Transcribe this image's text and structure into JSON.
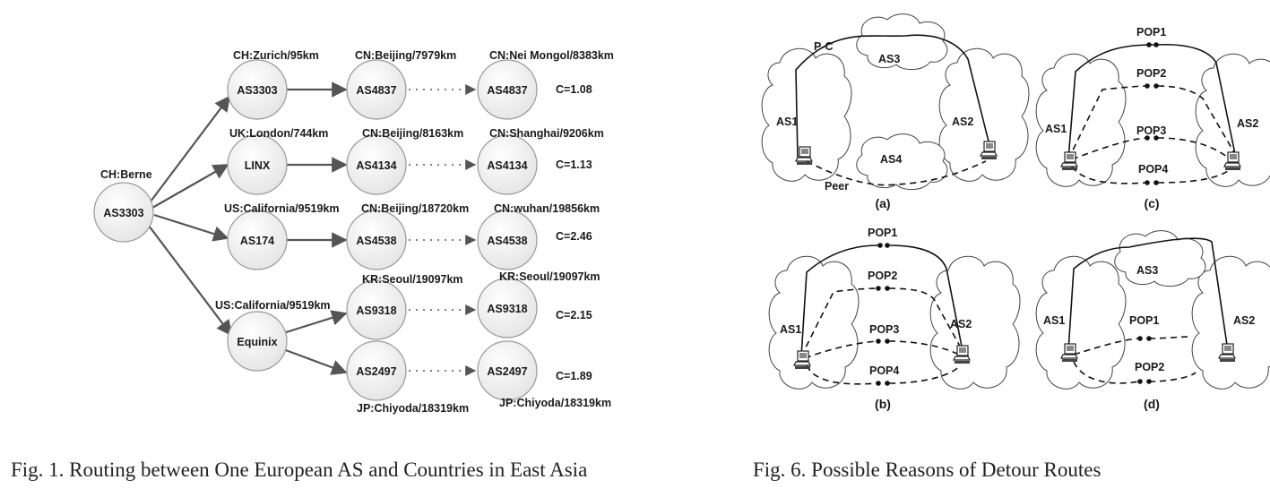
{
  "fig1": {
    "caption": "Fig. 1.  Routing between One European AS and Countries in East Asia",
    "source": {
      "name": "AS3303",
      "location": "CH:Berne"
    },
    "routes": [
      {
        "hop1": "AS3303",
        "hop1_loc": "CH:Zurich/95km",
        "hop2": "AS4837",
        "hop2_loc": "CN:Beijing/7979km",
        "hop3": "AS4837",
        "hop3_loc": "CN:Nei Mongol/8383km",
        "c": "C=1.08"
      },
      {
        "hop1": "LINX",
        "hop1_loc": "UK:London/744km",
        "hop2": "AS4134",
        "hop2_loc": "CN:Beijing/8163km",
        "hop3": "AS4134",
        "hop3_loc": "CN:Shanghai/9206km",
        "c": "C=1.13"
      },
      {
        "hop1": "AS174",
        "hop1_loc": "US:California/9519km",
        "hop2": "AS4538",
        "hop2_loc": "CN:Beijing/18720km",
        "hop3": "AS4538",
        "hop3_loc": "CN:wuhan/19856km",
        "c": "C=2.46"
      }
    ],
    "equinix": {
      "name": "Equinix",
      "loc": "US:California/9519km",
      "branches": [
        {
          "hop2": "AS9318",
          "hop2_loc": "KR:Seoul/19097km",
          "hop3": "AS9318",
          "hop3_loc": "KR:Seoul/19097km",
          "c": "C=2.15"
        },
        {
          "hop2": "AS2497",
          "hop2_loc": "JP:Chiyoda/18319km",
          "hop3": "AS2497",
          "hop3_loc": "JP:Chiyoda/18319km",
          "c": "C=1.89"
        }
      ]
    }
  },
  "fig6": {
    "caption": "Fig. 6.  Possible Reasons of Detour Routes",
    "panel_a": {
      "label": "(a)",
      "as1": "AS1",
      "as2": "AS2",
      "as3": "AS3",
      "as4": "AS4",
      "pc": "P-C",
      "peer": "Peer"
    },
    "panel_b": {
      "label": "(b)",
      "as1": "AS1",
      "as2": "AS2",
      "pop1": "POP1",
      "pop2": "POP2",
      "pop3": "POP3",
      "pop4": "POP4"
    },
    "panel_c": {
      "label": "(c)",
      "as1": "AS1",
      "as2": "AS2",
      "pop1": "POP1",
      "pop2": "POP2",
      "pop3": "POP3",
      "pop4": "POP4"
    },
    "panel_d": {
      "label": "(d)",
      "as1": "AS1",
      "as2": "AS2",
      "as3": "AS3",
      "pop1": "POP1",
      "pop2": "POP2"
    }
  }
}
